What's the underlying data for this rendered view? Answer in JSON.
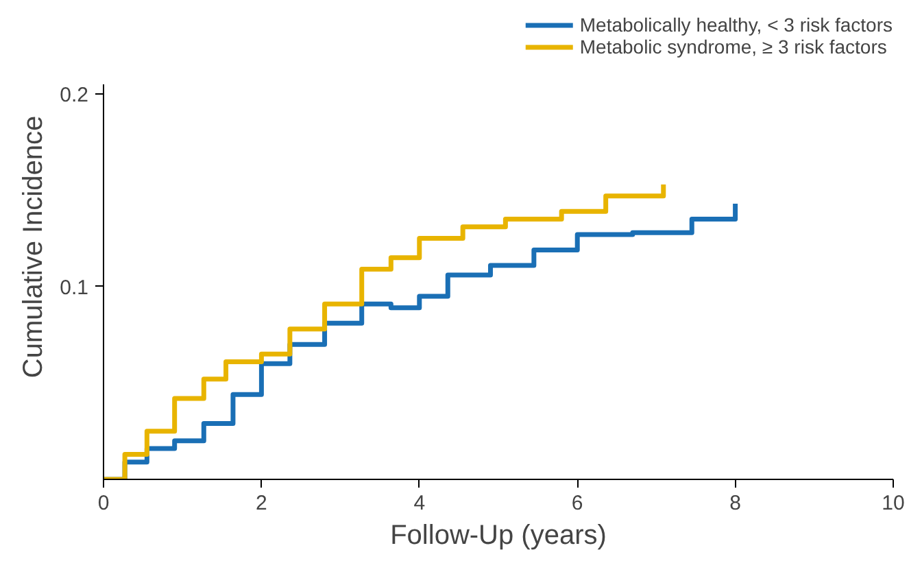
{
  "chart_data": {
    "type": "step",
    "xlabel": "Follow-Up (years)",
    "ylabel": "Cumulative Incidence",
    "xlim": [
      0,
      10
    ],
    "ylim": [
      0,
      0.205
    ],
    "xticks": [
      0,
      2,
      4,
      6,
      8,
      10
    ],
    "yticks": [
      0.1,
      0.2
    ],
    "grid": false,
    "legend": "top right",
    "line_style": "solid",
    "series": [
      {
        "name": "Metabolically healthy, < 3 risk factors",
        "color": "#1a6fb5",
        "x": [
          0,
          0.27,
          0.55,
          0.9,
          1.27,
          1.64,
          2,
          2.36,
          2.8,
          3.27,
          3.64,
          4,
          4.36,
          4.9,
          5.45,
          6,
          6.7,
          7.45,
          8
        ],
        "values": [
          0,
          0.009,
          0.016,
          0.02,
          0.029,
          0.044,
          0.06,
          0.07,
          0.081,
          0.091,
          0.089,
          0.095,
          0.106,
          0.111,
          0.119,
          0.127,
          0.128,
          0.135,
          0.143
        ]
      },
      {
        "name": "Metabolic syndrome, ≥ 3 risk factors",
        "color": "#e8b400",
        "x": [
          0,
          0.27,
          0.55,
          0.9,
          1.27,
          1.55,
          2,
          2.36,
          2.8,
          3.27,
          3.64,
          4,
          4.55,
          5.09,
          5.8,
          6.36,
          7.09
        ],
        "values": [
          0,
          0.013,
          0.025,
          0.042,
          0.052,
          0.061,
          0.065,
          0.078,
          0.091,
          0.109,
          0.115,
          0.125,
          0.131,
          0.135,
          0.139,
          0.147,
          0.153
        ]
      }
    ]
  }
}
